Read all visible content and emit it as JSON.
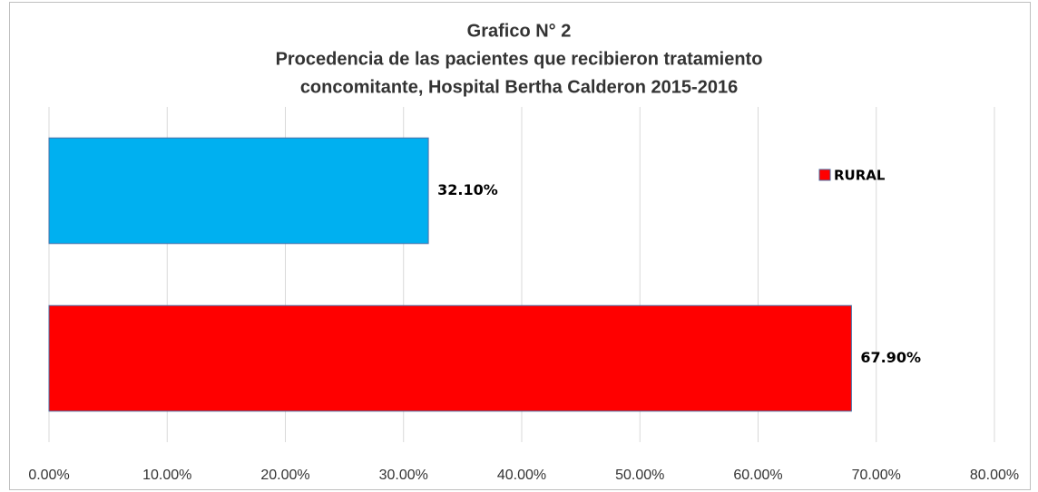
{
  "chart_data": {
    "type": "barh",
    "title": [
      "Grafico N° 2",
      "Procedencia de las pacientes que recibieron tratamiento",
      "concomitante, Hospital Bertha Calderon 2015-2016"
    ],
    "categories": [
      null,
      null
    ],
    "values": [
      32.1,
      67.9
    ],
    "value_labels": [
      "32.10%",
      "67.90%"
    ],
    "colors": [
      "#00b0f0",
      "#ff0000"
    ],
    "legend": {
      "name": "RURAL",
      "color": "#ff0000",
      "position": "right"
    },
    "xlim": [
      0,
      80
    ],
    "xticks": [
      {
        "value": 0,
        "label": "0.00%"
      },
      {
        "value": 10,
        "label": "10.00%"
      },
      {
        "value": 20,
        "label": "20.00%"
      },
      {
        "value": 30,
        "label": "30.00%"
      },
      {
        "value": 40,
        "label": "40.00%"
      },
      {
        "value": 50,
        "label": "50.00%"
      },
      {
        "value": 60,
        "label": "60.00%"
      },
      {
        "value": 70,
        "label": "70.00%"
      },
      {
        "value": 80,
        "label": "80.00%"
      }
    ],
    "grid": true
  }
}
